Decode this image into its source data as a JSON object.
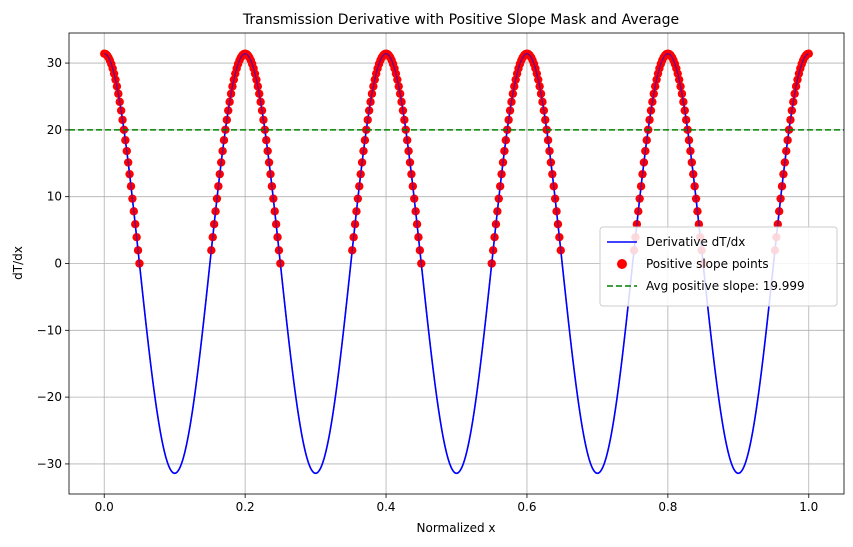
{
  "chart_data": {
    "type": "line",
    "title": "Transmission Derivative with Positive Slope Mask and Average",
    "xlabel": "Normalized x",
    "ylabel": "dT/dx",
    "xlim": [
      -0.05,
      1.05
    ],
    "ylim": [
      -34.5,
      34.5
    ],
    "xticks": [
      0.0,
      0.2,
      0.4,
      0.6,
      0.8,
      1.0
    ],
    "xtick_labels": [
      "0.0",
      "0.2",
      "0.4",
      "0.6",
      "0.8",
      "1.0"
    ],
    "yticks": [
      -30,
      -20,
      -10,
      0,
      10,
      20,
      30
    ],
    "ytick_labels": [
      "−30",
      "−20",
      "−10",
      "0",
      "10",
      "20",
      "30"
    ],
    "grid": true,
    "legend_position": "center-right",
    "series": [
      {
        "name": "Derivative dT/dx",
        "kind": "line",
        "color": "#0000ff",
        "function": "31.4 * cos(10 * pi * x)",
        "x_range": [
          0,
          1
        ]
      },
      {
        "name": "Positive slope points",
        "kind": "scatter",
        "color": "#ff0000",
        "function": "31.4 * cos(10 * pi * x) where dT/dx > 0",
        "x_range": [
          0,
          1
        ]
      },
      {
        "name": "Avg positive slope: 19.999",
        "kind": "hline",
        "color": "#008000",
        "linestyle": "dashed",
        "value": 19.999
      }
    ]
  }
}
